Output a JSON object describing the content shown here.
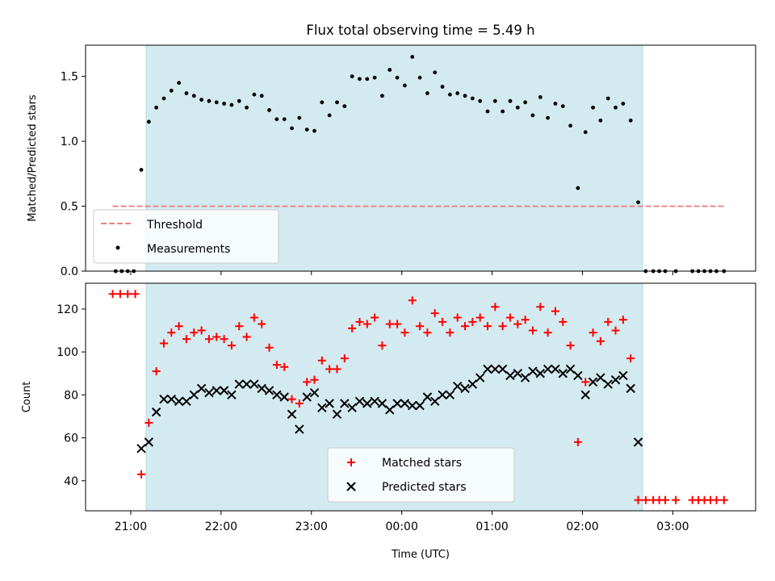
{
  "chart_data": [
    {
      "type": "scatter",
      "title": "Flux total observing time = 5.49 h",
      "ylabel": "Matched/Predicted stars",
      "xlabel": "",
      "xlim": [
        "20:30",
        "03:55"
      ],
      "ylim": [
        0,
        1.74
      ],
      "yticks": [
        "0.0",
        "0.5",
        "1.0",
        "1.5"
      ],
      "shaded_span": {
        "start": "21:06",
        "end": "02:38",
        "color": "#d3eaf0"
      },
      "threshold": {
        "name": "Threshold",
        "value": 0.5,
        "color": "#f08080",
        "style": "dashed",
        "x_range": [
          "20:48",
          "03:34"
        ]
      },
      "series": [
        {
          "name": "Measurements",
          "marker": "dot",
          "color": "#000000",
          "x": [
            "20:50",
            "20:54",
            "20:58",
            "21:02",
            "21:07",
            "21:12",
            "21:17",
            "21:22",
            "21:27",
            "21:32",
            "21:37",
            "21:42",
            "21:47",
            "21:52",
            "21:57",
            "22:02",
            "22:07",
            "22:12",
            "22:17",
            "22:22",
            "22:27",
            "22:32",
            "22:37",
            "22:42",
            "22:47",
            "22:52",
            "22:57",
            "23:02",
            "23:07",
            "23:12",
            "23:17",
            "23:22",
            "23:27",
            "23:32",
            "23:37",
            "23:42",
            "23:47",
            "23:52",
            "23:57",
            "00:02",
            "00:07",
            "00:12",
            "00:17",
            "00:22",
            "00:27",
            "00:32",
            "00:37",
            "00:42",
            "00:47",
            "00:52",
            "00:57",
            "01:02",
            "01:07",
            "01:12",
            "01:17",
            "01:22",
            "01:27",
            "01:32",
            "01:37",
            "01:42",
            "01:47",
            "01:52",
            "01:57",
            "02:02",
            "02:07",
            "02:12",
            "02:17",
            "02:22",
            "02:27",
            "02:32",
            "02:37",
            "02:42",
            "02:47",
            "02:51",
            "02:55",
            "03:02",
            "03:13",
            "03:17",
            "03:21",
            "03:25",
            "03:29",
            "03:34"
          ],
          "y": [
            0,
            0,
            0,
            0,
            0.78,
            1.15,
            1.26,
            1.33,
            1.39,
            1.45,
            1.37,
            1.35,
            1.32,
            1.31,
            1.3,
            1.29,
            1.28,
            1.31,
            1.26,
            1.36,
            1.35,
            1.24,
            1.17,
            1.17,
            1.1,
            1.18,
            1.09,
            1.08,
            1.3,
            1.2,
            1.3,
            1.27,
            1.5,
            1.48,
            1.48,
            1.49,
            1.35,
            1.55,
            1.49,
            1.43,
            1.65,
            1.49,
            1.37,
            1.53,
            1.42,
            1.36,
            1.37,
            1.35,
            1.33,
            1.31,
            1.23,
            1.31,
            1.23,
            1.31,
            1.26,
            1.3,
            1.2,
            1.34,
            1.18,
            1.29,
            1.27,
            1.12,
            0.64,
            1.07,
            1.26,
            1.16,
            1.33,
            1.26,
            1.29,
            1.16,
            0.53,
            0,
            0,
            0,
            0,
            0,
            0,
            0,
            0,
            0,
            0,
            0
          ]
        }
      ],
      "legend": {
        "placement": "lower-left",
        "entries": [
          "Threshold",
          "Measurements"
        ]
      }
    },
    {
      "type": "scatter",
      "title": "",
      "ylabel": "Count",
      "xlabel": "Time (UTC)",
      "xlim": [
        "20:30",
        "03:55"
      ],
      "ylim": [
        26,
        132
      ],
      "yticks": [
        "40",
        "60",
        "80",
        "100",
        "120"
      ],
      "xticks": [
        "21:00",
        "22:00",
        "23:00",
        "00:00",
        "01:00",
        "02:00",
        "03:00"
      ],
      "shaded_span": {
        "start": "21:06",
        "end": "02:38",
        "color": "#d3eaf0"
      },
      "series": [
        {
          "name": "Matched stars",
          "marker": "plus",
          "color": "#ff0000",
          "x": [
            "20:48",
            "20:53",
            "20:58",
            "21:03",
            "21:07",
            "21:12",
            "21:17",
            "21:22",
            "21:27",
            "21:32",
            "21:37",
            "21:42",
            "21:47",
            "21:52",
            "21:57",
            "22:02",
            "22:07",
            "22:12",
            "22:17",
            "22:22",
            "22:27",
            "22:32",
            "22:37",
            "22:42",
            "22:47",
            "22:52",
            "22:57",
            "23:02",
            "23:07",
            "23:12",
            "23:17",
            "23:22",
            "23:27",
            "23:32",
            "23:37",
            "23:42",
            "23:47",
            "23:52",
            "23:57",
            "00:02",
            "00:07",
            "00:12",
            "00:17",
            "00:22",
            "00:27",
            "00:32",
            "00:37",
            "00:42",
            "00:47",
            "00:52",
            "00:57",
            "01:02",
            "01:07",
            "01:12",
            "01:17",
            "01:22",
            "01:27",
            "01:32",
            "01:37",
            "01:42",
            "01:47",
            "01:52",
            "01:57",
            "02:02",
            "02:07",
            "02:12",
            "02:17",
            "02:22",
            "02:27",
            "02:32",
            "02:37",
            "02:42",
            "02:47",
            "02:51",
            "02:55",
            "03:02",
            "03:13",
            "03:17",
            "03:21",
            "03:25",
            "03:29",
            "03:34"
          ],
          "y": [
            127,
            127,
            127,
            127,
            43,
            67,
            91,
            104,
            109,
            112,
            106,
            109,
            110,
            106,
            107,
            106,
            103,
            112,
            107,
            116,
            113,
            102,
            94,
            93,
            78,
            76,
            86,
            87,
            96,
            92,
            92,
            97,
            111,
            114,
            113,
            116,
            103,
            113,
            113,
            109,
            124,
            112,
            109,
            118,
            114,
            109,
            116,
            112,
            114,
            116,
            112,
            121,
            112,
            116,
            113,
            115,
            110,
            121,
            109,
            119,
            114,
            103,
            58,
            86,
            109,
            105,
            114,
            110,
            115,
            97,
            31,
            31,
            31,
            31,
            31,
            31,
            31,
            31,
            31,
            31,
            31,
            31
          ]
        },
        {
          "name": "Predicted stars",
          "marker": "x",
          "color": "#000000",
          "x": [
            "21:07",
            "21:12",
            "21:17",
            "21:22",
            "21:27",
            "21:32",
            "21:37",
            "21:42",
            "21:47",
            "21:52",
            "21:57",
            "22:02",
            "22:07",
            "22:12",
            "22:17",
            "22:22",
            "22:27",
            "22:32",
            "22:37",
            "22:42",
            "22:47",
            "22:52",
            "22:57",
            "23:02",
            "23:07",
            "23:12",
            "23:17",
            "23:22",
            "23:27",
            "23:32",
            "23:37",
            "23:42",
            "23:47",
            "23:52",
            "23:57",
            "00:02",
            "00:07",
            "00:12",
            "00:17",
            "00:22",
            "00:27",
            "00:32",
            "00:37",
            "00:42",
            "00:47",
            "00:52",
            "00:57",
            "01:02",
            "01:07",
            "01:12",
            "01:17",
            "01:22",
            "01:27",
            "01:32",
            "01:37",
            "01:42",
            "01:47",
            "01:52",
            "01:57",
            "02:02",
            "02:07",
            "02:12",
            "02:17",
            "02:22",
            "02:27",
            "02:32",
            "02:37"
          ],
          "y": [
            55,
            58,
            72,
            78,
            78,
            77,
            77,
            80,
            83,
            81,
            82,
            82,
            80,
            85,
            85,
            85,
            83,
            82,
            80,
            79,
            71,
            64,
            79,
            81,
            74,
            76,
            71,
            76,
            74,
            77,
            76,
            77,
            76,
            73,
            76,
            76,
            75,
            75,
            79,
            77,
            80,
            80,
            84,
            83,
            85,
            88,
            92,
            92,
            92,
            89,
            90,
            88,
            91,
            90,
            92,
            92,
            90,
            92,
            89,
            80,
            86,
            88,
            85,
            87,
            89,
            83,
            58
          ]
        }
      ],
      "legend": {
        "placement": "lower-center",
        "entries": [
          "Matched stars",
          "Predicted stars"
        ]
      }
    }
  ]
}
